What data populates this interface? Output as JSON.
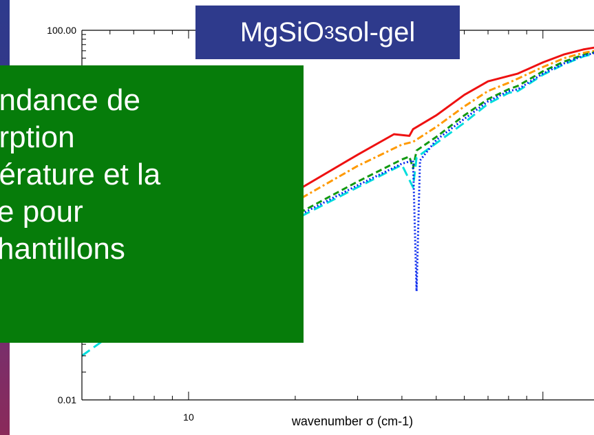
{
  "slide": {
    "title_main": "MgSiO",
    "title_sub": "3",
    "title_rest": " sol-gel",
    "callout_lines": [
      "endance de",
      "orption",
      "pérature et la",
      "ce pour",
      "chantillons"
    ],
    "colors": {
      "background_top": "#2e3a8c",
      "callout": "#067c0a",
      "title_box": "#2e3a8c"
    }
  },
  "chart_data": {
    "type": "line",
    "title": "MgSiO3 sol-gel",
    "xlabel": "wavenumber σ (cm-1)",
    "ylabel": "",
    "x_scale": "log",
    "y_scale": "log",
    "xlim": [
      5,
      140
    ],
    "ylim": [
      0.01,
      100
    ],
    "x_tick_labels": [
      {
        "value": 10,
        "label": "10"
      }
    ],
    "y_tick_labels": [
      {
        "value": 100,
        "label": "100.00"
      },
      {
        "value": 0.01,
        "label": "0.01"
      }
    ],
    "series": [
      {
        "color": "#ee1111",
        "style": "solid",
        "points": [
          [
            5,
            0.12
          ],
          [
            10,
            0.5
          ],
          [
            20,
            1.8
          ],
          [
            30,
            4.5
          ],
          [
            38,
            7.5
          ],
          [
            42,
            7.2
          ],
          [
            43,
            8.5
          ],
          [
            50,
            12
          ],
          [
            60,
            20
          ],
          [
            70,
            28
          ],
          [
            80,
            32
          ],
          [
            85,
            34
          ],
          [
            100,
            45
          ],
          [
            115,
            55
          ],
          [
            130,
            62
          ],
          [
            140,
            65
          ]
        ]
      },
      {
        "color": "#ff9900",
        "style": "dashdot",
        "points": [
          [
            5,
            0.1
          ],
          [
            10,
            0.4
          ],
          [
            20,
            1.4
          ],
          [
            30,
            3.4
          ],
          [
            40,
            5.8
          ],
          [
            43,
            6.2
          ],
          [
            50,
            9
          ],
          [
            60,
            15
          ],
          [
            70,
            22
          ],
          [
            80,
            27
          ],
          [
            85,
            30
          ],
          [
            100,
            40
          ],
          [
            115,
            50
          ],
          [
            130,
            57
          ],
          [
            140,
            60
          ]
        ]
      },
      {
        "color": "#119911",
        "style": "dashed",
        "points": [
          [
            5,
            0.08
          ],
          [
            10,
            0.3
          ],
          [
            20,
            1.0
          ],
          [
            30,
            2.3
          ],
          [
            40,
            4
          ],
          [
            42,
            4.3
          ],
          [
            43,
            3.2
          ],
          [
            44,
            5
          ],
          [
            50,
            7
          ],
          [
            60,
            12
          ],
          [
            70,
            18
          ],
          [
            80,
            23
          ],
          [
            85,
            25
          ],
          [
            100,
            36
          ],
          [
            115,
            46
          ],
          [
            130,
            54
          ],
          [
            140,
            58
          ]
        ]
      },
      {
        "color": "#00dddd",
        "style": "longdash",
        "points": [
          [
            5,
            0.03
          ],
          [
            10,
            0.2
          ],
          [
            20,
            0.9
          ],
          [
            30,
            2.0
          ],
          [
            40,
            3.5
          ],
          [
            43,
            2.0
          ],
          [
            44,
            4.2
          ],
          [
            50,
            6
          ],
          [
            60,
            10
          ],
          [
            70,
            16
          ],
          [
            80,
            21
          ],
          [
            85,
            22
          ],
          [
            100,
            33
          ],
          [
            115,
            43
          ],
          [
            130,
            52
          ],
          [
            140,
            56
          ]
        ]
      },
      {
        "color": "#0022ee",
        "style": "dotted",
        "points": [
          [
            5,
            0.06
          ],
          [
            10,
            0.25
          ],
          [
            20,
            0.95
          ],
          [
            30,
            2.1
          ],
          [
            40,
            3.6
          ],
          [
            43,
            3.9
          ],
          [
            44,
            0.15
          ],
          [
            45,
            3.9
          ],
          [
            50,
            6.5
          ],
          [
            60,
            11
          ],
          [
            70,
            17
          ],
          [
            80,
            22
          ],
          [
            85,
            23
          ],
          [
            100,
            34
          ],
          [
            115,
            44
          ],
          [
            130,
            53
          ],
          [
            140,
            57
          ]
        ]
      }
    ]
  }
}
